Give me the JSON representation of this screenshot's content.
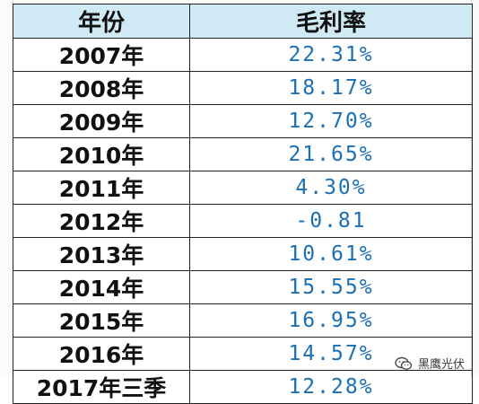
{
  "table": {
    "headers": {
      "year": "年份",
      "margin": "毛利率"
    },
    "rows": [
      {
        "year": "2007年",
        "margin": "22.31%"
      },
      {
        "year": "2008年",
        "margin": "18.17%"
      },
      {
        "year": "2009年",
        "margin": "12.70%"
      },
      {
        "year": "2010年",
        "margin": "21.65%"
      },
      {
        "year": "2011年",
        "margin": "4.30%"
      },
      {
        "year": "2012年",
        "margin": "-0.81"
      },
      {
        "year": "2013年",
        "margin": "10.61%"
      },
      {
        "year": "2014年",
        "margin": "15.55%"
      },
      {
        "year": "2015年",
        "margin": "16.95%"
      },
      {
        "year": "2016年",
        "margin": "14.57%"
      },
      {
        "year": "2017年三季",
        "margin": "12.28%"
      }
    ]
  },
  "watermark": {
    "text": "黑鹰光伏",
    "icon": "wechat-icon"
  },
  "colors": {
    "header_bg": "#cfe9f5",
    "value_text": "#1a6fb5",
    "border": "#222222"
  }
}
